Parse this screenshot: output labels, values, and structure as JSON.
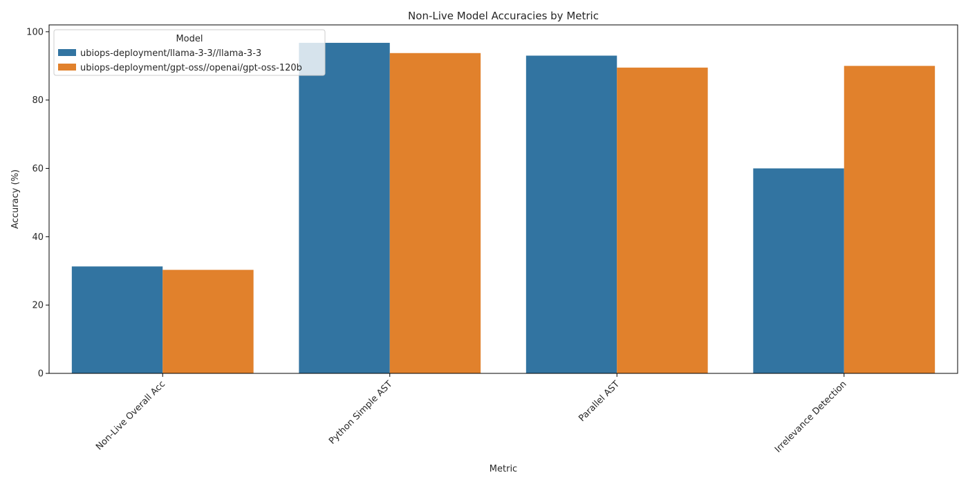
{
  "chart_data": {
    "type": "bar",
    "title": "Non-Live Model Accuracies by Metric",
    "xlabel": "Metric",
    "ylabel": "Accuracy (%)",
    "ylim": [
      0,
      102
    ],
    "yticks": [
      0,
      20,
      40,
      60,
      80,
      100
    ],
    "categories": [
      "Non-Live Overall Acc",
      "Python Simple AST",
      "Parallel AST",
      "Irrelevance Detection"
    ],
    "series": [
      {
        "name": "ubiops-deployment/llama-3-3//llama-3-3",
        "color": "#3274a1",
        "values": [
          31.3,
          96.75,
          93.0,
          60.0
        ]
      },
      {
        "name": "ubiops-deployment/gpt-oss//openai/gpt-oss-120b",
        "color": "#e1812c",
        "values": [
          30.3,
          93.75,
          89.5,
          90.0
        ]
      }
    ],
    "legend": {
      "title": "Model",
      "placement": "top-left"
    },
    "grid": false
  }
}
